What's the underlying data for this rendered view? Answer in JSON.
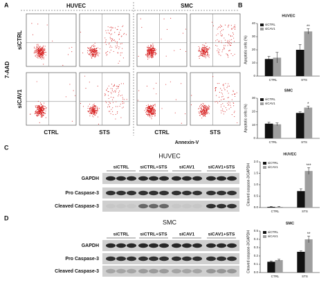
{
  "panel_labels": [
    "A",
    "B",
    "C",
    "D"
  ],
  "flow": {
    "columns": [
      "HUVEC",
      "SMC"
    ],
    "rows": [
      "siCTRL",
      "siCAV1"
    ],
    "y_axis": "7-AAD",
    "x_axis": "Annexin-V",
    "conditions": [
      "CTRL",
      "STS",
      "CTRL",
      "STS"
    ]
  },
  "blots": [
    {
      "title": "HUVEC",
      "lanes": [
        "siCTRL",
        "siCTRL+STS",
        "siCAV1",
        "siCAV1+STS"
      ],
      "rows": [
        "GAPDH",
        "Pro Caspase-3",
        "Cleaved Caspase-3"
      ]
    },
    {
      "title": "SMC",
      "lanes": [
        "siCTRL",
        "siCTRL+STS",
        "siCAV1",
        "siCAV1+STS"
      ],
      "rows": [
        "GAPDH",
        "Pro Caspase-3",
        "Cleaved Caspase-3"
      ]
    }
  ],
  "chart_data": [
    {
      "type": "bar",
      "title": "HUVEC",
      "y_label": "Apoptotic cells (%)",
      "categories": [
        "CTRL",
        "STS"
      ],
      "series": [
        {
          "name": "siCTRL",
          "color": "#111111",
          "values": [
            13,
            20
          ],
          "errors": [
            2,
            4
          ]
        },
        {
          "name": "siCAV1",
          "color": "#9e9e9e",
          "values": [
            14,
            34
          ],
          "errors": [
            4,
            2
          ]
        }
      ],
      "ylim": [
        0,
        40
      ],
      "yticks": [
        0,
        10,
        20,
        30,
        40
      ],
      "annotation": "**"
    },
    {
      "type": "bar",
      "title": "SMC",
      "y_label": "Apoptotic cells (%)",
      "categories": [
        "CTRL",
        "STS"
      ],
      "series": [
        {
          "name": "siCTRL",
          "color": "#111111",
          "values": [
            11,
            19
          ],
          "errors": [
            1,
            0.8
          ]
        },
        {
          "name": "siCAV1",
          "color": "#9e9e9e",
          "values": [
            10.5,
            23
          ],
          "errors": [
            1,
            1
          ]
        }
      ],
      "ylim": [
        0,
        30
      ],
      "yticks": [
        0,
        10,
        20,
        30
      ],
      "annotation": "*"
    },
    {
      "type": "bar",
      "title": "HUVEC",
      "y_label": "Cleaved caspase-3/GAPDH",
      "categories": [
        "CTRL",
        "STS"
      ],
      "series": [
        {
          "name": "siCTRL",
          "color": "#111111",
          "values": [
            0.03,
            0.72
          ],
          "errors": [
            0.02,
            0.1
          ]
        },
        {
          "name": "siCAV1",
          "color": "#9e9e9e",
          "values": [
            0.03,
            1.6
          ],
          "errors": [
            0.02,
            0.15
          ]
        }
      ],
      "ylim": [
        0,
        2
      ],
      "yticks": [
        {
          "value": 0,
          "label": "0.0"
        },
        0.5,
        {
          "value": 1,
          "label": "1.0"
        },
        1.5,
        {
          "value": 2,
          "label": "2.0"
        }
      ],
      "annotation": "***"
    },
    {
      "type": "bar",
      "title": "SMC",
      "y_label": "Cleaved caspase-3/GAPDH",
      "categories": [
        "CTRL",
        "STS"
      ],
      "series": [
        {
          "name": "siCTRL",
          "color": "#111111",
          "values": [
            0.13,
            0.25
          ],
          "errors": [
            0.01,
            0.01
          ]
        },
        {
          "name": "siCAV1",
          "color": "#9e9e9e",
          "values": [
            0.15,
            0.4
          ],
          "errors": [
            0.01,
            0.04
          ]
        }
      ],
      "ylim": [
        0,
        0.5
      ],
      "yticks": [
        {
          "value": 0,
          "label": "0.0"
        },
        0.1,
        0.2,
        0.3,
        0.4,
        0.5
      ],
      "annotation": "**"
    }
  ]
}
